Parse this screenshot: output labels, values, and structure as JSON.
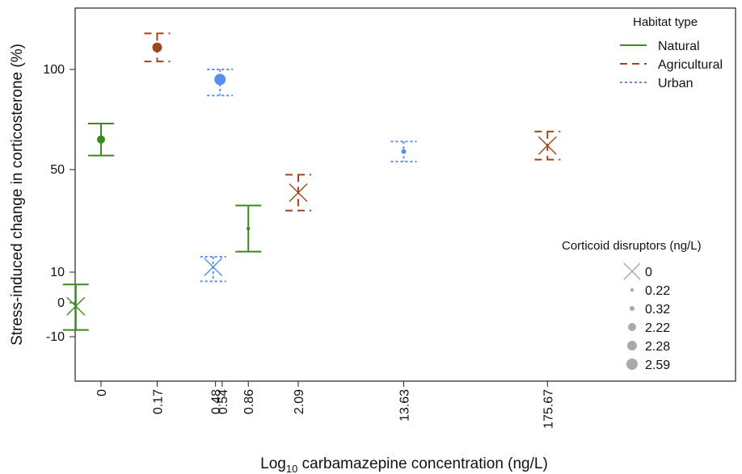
{
  "chart_data": {
    "type": "scatter",
    "title": "",
    "xlabel_main": "Log",
    "xlabel_sub": "10",
    "xlabel_rest": " carbamazepine concentration (ng/L)",
    "ylabel": "Stress-induced change in corticosterone (%)",
    "x_tick_labels": [
      "0",
      "0.17",
      "0.48",
      "0.54",
      "0.86",
      "2.09",
      "13.63",
      "175.67"
    ],
    "y_tick_labels": [
      "100",
      "50",
      "10",
      "0",
      "-10"
    ],
    "y_ticks": [
      100,
      50,
      10,
      0,
      -10
    ],
    "grid": false,
    "legend_habitat": {
      "title": "Habitat type",
      "items": [
        {
          "label": "Natural",
          "color": "#3a8a1e",
          "dash": "solid"
        },
        {
          "label": "Agricultural",
          "color": "#a0461c",
          "dash": "dashed"
        },
        {
          "label": "Urban",
          "color": "#5b8def",
          "dash": "dotted"
        }
      ]
    },
    "legend_disruptors": {
      "title": "Corticoid disruptors (ng/L)",
      "items": [
        {
          "label": "0",
          "marker": "x"
        },
        {
          "label": "0.22",
          "marker": "dot",
          "size": 2.2
        },
        {
          "label": "0.32",
          "marker": "dot",
          "size": 3
        },
        {
          "label": "2.22",
          "marker": "dot",
          "size": 5
        },
        {
          "label": "2.28",
          "marker": "dot",
          "size": 6
        },
        {
          "label": "2.59",
          "marker": "dot",
          "size": 7
        }
      ]
    },
    "series": [
      {
        "habitat": "Natural",
        "x": "0",
        "y": 65,
        "ylow": 57,
        "yhigh": 73,
        "disruptor": "2.22"
      },
      {
        "habitat": "Natural",
        "x": "0.04",
        "y": -1,
        "ylow": -8,
        "yhigh": 6,
        "disruptor": "0"
      },
      {
        "habitat": "Agricultural",
        "x": "0.17",
        "y": 111,
        "ylow": 104,
        "yhigh": 118,
        "disruptor": "2.28"
      },
      {
        "habitat": "Urban",
        "x": "0.52",
        "y": 95,
        "ylow": 87,
        "yhigh": 100,
        "disruptor": "2.59"
      },
      {
        "habitat": "Urban",
        "x": "0.46",
        "y": 12,
        "ylow": 7,
        "yhigh": 16,
        "disruptor": "0"
      },
      {
        "habitat": "Natural",
        "x": "0.86",
        "y": 27,
        "ylow": 18,
        "yhigh": 36,
        "disruptor": "0.22"
      },
      {
        "habitat": "Agricultural",
        "x": "2.09",
        "y": 41,
        "ylow": 34,
        "yhigh": 48,
        "disruptor": "0"
      },
      {
        "habitat": "Urban",
        "x": "13.63",
        "y": 59,
        "ylow": 54,
        "yhigh": 64,
        "disruptor": "0.32"
      },
      {
        "habitat": "Agricultural",
        "x": "175.67",
        "y": 62,
        "ylow": 55,
        "yhigh": 69,
        "disruptor": "0"
      }
    ]
  }
}
